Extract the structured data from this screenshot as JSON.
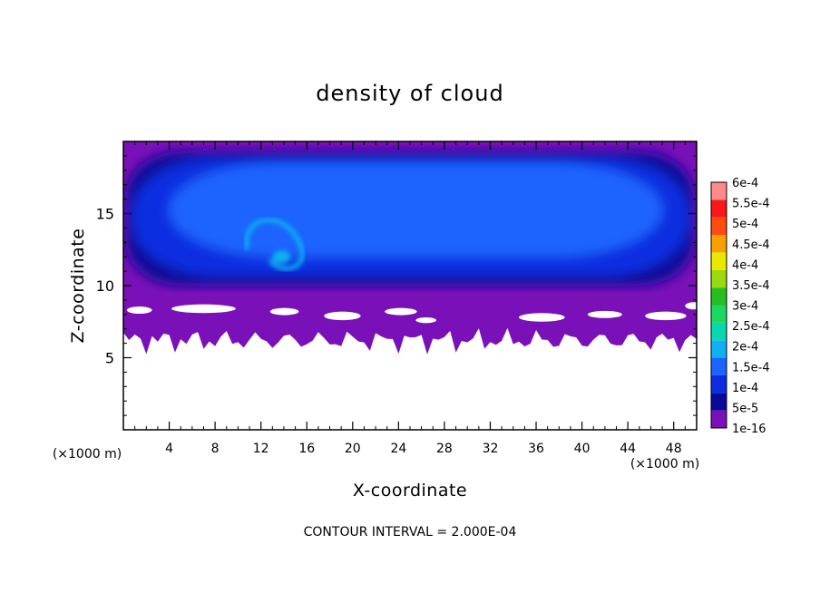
{
  "chart_data": {
    "type": "heatmap",
    "title": "density of cloud",
    "xlabel": "X-coordinate",
    "ylabel": "Z-coordinate",
    "x_unit": "(×1000 m)",
    "y_unit": "(×1000 m)",
    "xlim": [
      0,
      50
    ],
    "ylim": [
      0,
      20
    ],
    "x_ticks": [
      4,
      8,
      12,
      16,
      20,
      24,
      28,
      32,
      36,
      40,
      44,
      48
    ],
    "y_ticks": [
      5,
      10,
      15
    ],
    "contour_note": "CONTOUR INTERVAL = 2.000E-04",
    "colorbar": {
      "levels": [
        "1e-16",
        "5e-5",
        "1e-4",
        "1.5e-4",
        "2e-4",
        "2.5e-4",
        "3e-4",
        "3.5e-4",
        "4e-4",
        "4.5e-4",
        "5e-4",
        "5.5e-4",
        "6e-4"
      ],
      "colors": [
        "#7a10b8",
        "#0a0a9a",
        "#0a2de0",
        "#1c64ff",
        "#0fb2f0",
        "#08d8b0",
        "#1cd860",
        "#25c020",
        "#9ad810",
        "#e8e800",
        "#f8a000",
        "#ff4a10",
        "#f81818",
        "#ff8a8a"
      ]
    },
    "field": {
      "cloud_layer_z": [
        6.5,
        19.5
      ],
      "dense_core_z": [
        10.5,
        18.5
      ],
      "peak_value": "1.5e-4",
      "peak_location_x": [
        10,
        16
      ],
      "peak_location_z": [
        11.5,
        14.5
      ]
    }
  }
}
